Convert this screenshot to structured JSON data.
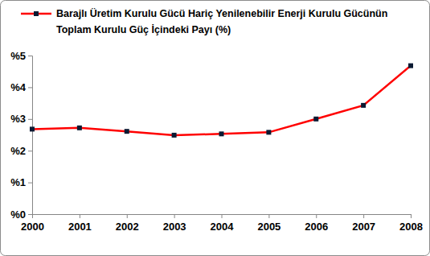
{
  "chart_data": {
    "type": "line",
    "categories": [
      "2000",
      "2001",
      "2002",
      "2003",
      "2004",
      "2005",
      "2006",
      "2007",
      "2008"
    ],
    "series": [
      {
        "name": "Barajlı Üretim Kurulu Gücü Hariç Yenilenebilir Enerji Kurulu Gücünün Toplam Kurulu Güç İçindeki Payı (%)",
        "color": "#ff0000",
        "marker": "square",
        "values": [
          2.68,
          2.72,
          2.61,
          2.49,
          2.53,
          2.58,
          3.0,
          3.43,
          4.68
        ]
      }
    ],
    "ylim": [
      0,
      5
    ],
    "yticks": [
      {
        "value": 0,
        "label": "%0"
      },
      {
        "value": 1,
        "label": "%1"
      },
      {
        "value": 2,
        "label": "%2"
      },
      {
        "value": 3,
        "label": "%3"
      },
      {
        "value": 4,
        "label": "%4"
      },
      {
        "value": 5,
        "label": "%5"
      }
    ],
    "grid": false,
    "legend": "top"
  }
}
